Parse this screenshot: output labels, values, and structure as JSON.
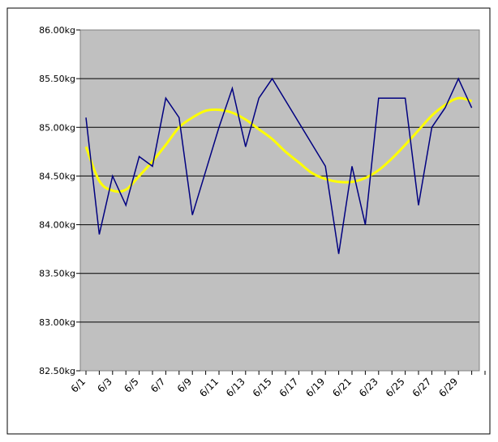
{
  "chart_data": {
    "type": "line",
    "title": "",
    "xlabel": "",
    "ylabel": "",
    "ylim": [
      82.5,
      86.0
    ],
    "y_ticks": [
      82.5,
      83.0,
      83.5,
      84.0,
      84.5,
      85.0,
      85.5,
      86.0
    ],
    "y_tick_labels": [
      "82.50kg",
      "83.00kg",
      "83.50kg",
      "84.00kg",
      "84.50kg",
      "85.00kg",
      "85.50kg",
      "86.00kg"
    ],
    "x_days": [
      1,
      2,
      3,
      4,
      5,
      6,
      7,
      8,
      9,
      10,
      11,
      12,
      13,
      14,
      15,
      16,
      17,
      18,
      19,
      20,
      21,
      22,
      23,
      24,
      25,
      26,
      27,
      28,
      29,
      30,
      31
    ],
    "x_tick_days": [
      1,
      3,
      5,
      7,
      9,
      11,
      13,
      15,
      17,
      19,
      21,
      23,
      25,
      27,
      29
    ],
    "x_tick_labels": [
      "6/1",
      "6/3",
      "6/5",
      "6/7",
      "6/9",
      "6/11",
      "6/13",
      "6/15",
      "6/17",
      "6/19",
      "6/21",
      "6/23",
      "6/25",
      "6/27",
      "6/29"
    ],
    "grid": true,
    "legend": "none",
    "plot_background": "#c0c0c0",
    "series": [
      {
        "color": "#000080",
        "points": [
          [
            1,
            85.1
          ],
          [
            2,
            83.9
          ],
          [
            3,
            84.5
          ],
          [
            4,
            84.2
          ],
          [
            5,
            84.7
          ],
          [
            6,
            84.6
          ],
          [
            7,
            85.3
          ],
          [
            8,
            85.1
          ],
          [
            9,
            84.1
          ],
          [
            11,
            85.0
          ],
          [
            12,
            85.4
          ],
          [
            13,
            84.8
          ],
          [
            14,
            85.3
          ],
          [
            15,
            85.5
          ],
          [
            19,
            84.6
          ],
          [
            20,
            83.7
          ],
          [
            21,
            84.6
          ],
          [
            22,
            84.0
          ],
          [
            23,
            85.3
          ],
          [
            25,
            85.3
          ],
          [
            26,
            84.2
          ],
          [
            27,
            85.0
          ],
          [
            28,
            85.2
          ],
          [
            29,
            85.5
          ],
          [
            30,
            85.2
          ]
        ]
      },
      {
        "color": "#ffff00",
        "points": [
          [
            1,
            84.8
          ],
          [
            2,
            84.45
          ],
          [
            3,
            84.35
          ],
          [
            4,
            84.36
          ],
          [
            5,
            84.5
          ],
          [
            6,
            84.65
          ],
          [
            7,
            84.82
          ],
          [
            8,
            85.0
          ],
          [
            9,
            85.1
          ],
          [
            10,
            85.17
          ],
          [
            11,
            85.18
          ],
          [
            12,
            85.15
          ],
          [
            13,
            85.08
          ],
          [
            14,
            84.98
          ],
          [
            15,
            84.88
          ],
          [
            16,
            84.75
          ],
          [
            17,
            84.64
          ],
          [
            18,
            84.53
          ],
          [
            19,
            84.47
          ],
          [
            20,
            84.44
          ],
          [
            21,
            84.44
          ],
          [
            22,
            84.48
          ],
          [
            23,
            84.56
          ],
          [
            24,
            84.68
          ],
          [
            25,
            84.82
          ],
          [
            26,
            84.97
          ],
          [
            27,
            85.12
          ],
          [
            28,
            85.23
          ],
          [
            29,
            85.3
          ],
          [
            30,
            85.27
          ]
        ]
      }
    ]
  }
}
